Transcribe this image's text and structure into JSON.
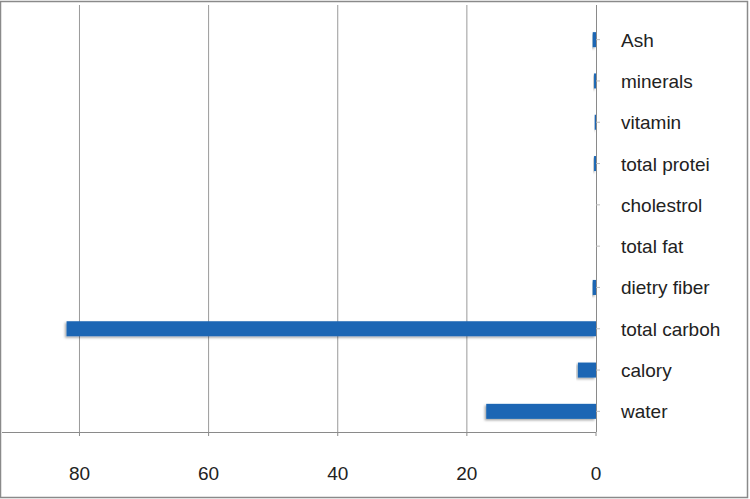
{
  "chart_data": {
    "type": "bar",
    "orientation": "horizontal",
    "categories": [
      "Ash",
      "minerals",
      "vitamin",
      "total protei",
      "cholestrol",
      "total fat",
      "dietry fiber",
      "total carboh",
      "calory",
      "water"
    ],
    "values": [
      0.5,
      0.3,
      0.2,
      0.3,
      0,
      0,
      0.5,
      82,
      2.8,
      17
    ],
    "color": "#1a66b4",
    "xlim": [
      92,
      0
    ],
    "xticks": [
      0,
      20,
      40,
      60,
      80
    ],
    "grid": true
  }
}
